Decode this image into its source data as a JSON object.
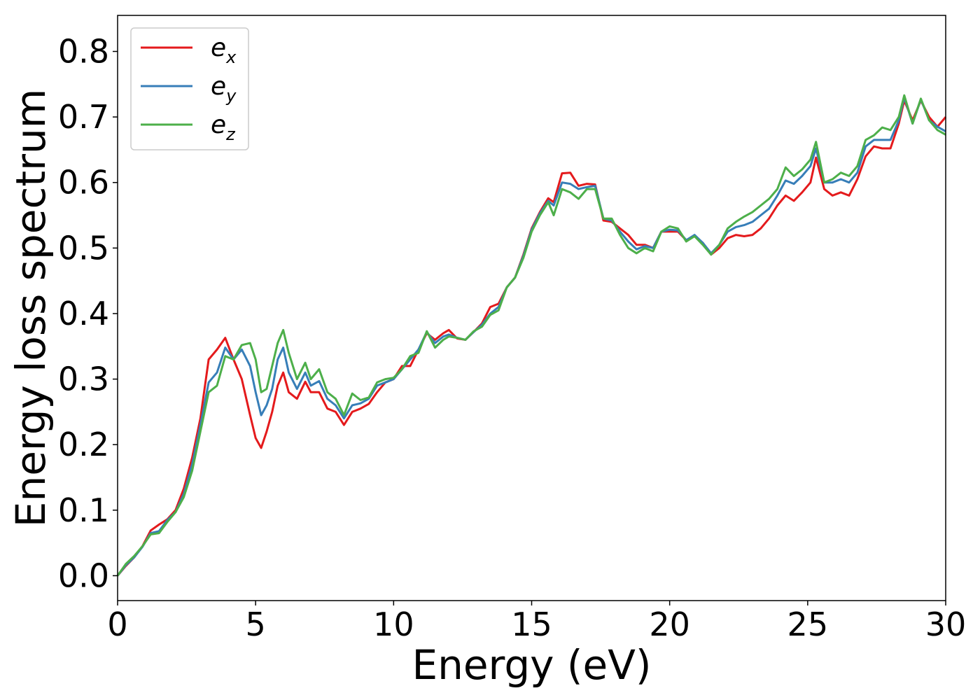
{
  "chart_data": {
    "type": "line",
    "title": "",
    "xlabel": "Energy (eV)",
    "ylabel": "Energy loss spectrum",
    "xlim": [
      0,
      30
    ],
    "ylim": [
      -0.038,
      0.855
    ],
    "xticks": [
      0,
      5,
      10,
      15,
      20,
      25,
      30
    ],
    "xtick_labels": [
      "0",
      "5",
      "10",
      "15",
      "20",
      "25",
      "30"
    ],
    "yticks": [
      0.0,
      0.1,
      0.2,
      0.3,
      0.4,
      0.5,
      0.6,
      0.7,
      0.8
    ],
    "ytick_labels": [
      "0.0",
      "0.1",
      "0.2",
      "0.3",
      "0.4",
      "0.5",
      "0.6",
      "0.7",
      "0.8"
    ],
    "grid": false,
    "legend_position": "top-left",
    "series": [
      {
        "name": "e_x",
        "legend_base": "e",
        "legend_sub": "x",
        "color": "#e41a1c",
        "x": [
          0,
          0.3,
          0.6,
          0.9,
          1.2,
          1.5,
          1.8,
          2.1,
          2.4,
          2.7,
          3.0,
          3.3,
          3.6,
          3.9,
          4.2,
          4.5,
          4.8,
          5.0,
          5.2,
          5.4,
          5.6,
          5.8,
          6.0,
          6.2,
          6.5,
          6.8,
          7.0,
          7.3,
          7.6,
          7.9,
          8.2,
          8.5,
          8.8,
          9.1,
          9.4,
          9.7,
          10.0,
          10.3,
          10.6,
          10.9,
          11.2,
          11.5,
          11.8,
          12.0,
          12.3,
          12.6,
          12.9,
          13.2,
          13.5,
          13.8,
          14.1,
          14.4,
          14.7,
          15.0,
          15.3,
          15.6,
          15.8,
          16.1,
          16.4,
          16.7,
          17.0,
          17.3,
          17.6,
          17.9,
          18.2,
          18.5,
          18.8,
          19.1,
          19.4,
          19.7,
          20.0,
          20.3,
          20.6,
          20.9,
          21.2,
          21.5,
          21.8,
          22.1,
          22.4,
          22.7,
          23.0,
          23.3,
          23.6,
          23.9,
          24.2,
          24.5,
          24.8,
          25.1,
          25.3,
          25.6,
          25.9,
          26.2,
          26.5,
          26.8,
          27.1,
          27.4,
          27.7,
          28.0,
          28.3,
          28.5,
          28.8,
          29.1,
          29.4,
          29.7,
          30.0
        ],
        "y": [
          0.0,
          0.015,
          0.028,
          0.045,
          0.069,
          0.078,
          0.086,
          0.1,
          0.133,
          0.18,
          0.24,
          0.33,
          0.345,
          0.363,
          0.33,
          0.3,
          0.245,
          0.21,
          0.195,
          0.22,
          0.25,
          0.29,
          0.31,
          0.28,
          0.27,
          0.296,
          0.28,
          0.28,
          0.255,
          0.25,
          0.23,
          0.25,
          0.255,
          0.262,
          0.28,
          0.295,
          0.3,
          0.32,
          0.32,
          0.345,
          0.37,
          0.36,
          0.37,
          0.375,
          0.362,
          0.36,
          0.372,
          0.385,
          0.41,
          0.415,
          0.44,
          0.455,
          0.49,
          0.53,
          0.555,
          0.576,
          0.57,
          0.614,
          0.615,
          0.595,
          0.598,
          0.597,
          0.542,
          0.54,
          0.53,
          0.52,
          0.505,
          0.505,
          0.5,
          0.525,
          0.525,
          0.525,
          0.512,
          0.518,
          0.508,
          0.49,
          0.5,
          0.515,
          0.52,
          0.518,
          0.52,
          0.53,
          0.545,
          0.565,
          0.58,
          0.572,
          0.585,
          0.6,
          0.638,
          0.59,
          0.58,
          0.585,
          0.58,
          0.605,
          0.64,
          0.655,
          0.652,
          0.652,
          0.69,
          0.725,
          0.695,
          0.725,
          0.7,
          0.685,
          0.7
        ]
      },
      {
        "name": "e_y",
        "legend_base": "e",
        "legend_sub": "y",
        "color": "#377eb8",
        "x": [
          0,
          0.3,
          0.6,
          0.9,
          1.2,
          1.5,
          1.8,
          2.1,
          2.4,
          2.7,
          3.0,
          3.3,
          3.6,
          3.9,
          4.2,
          4.5,
          4.8,
          5.0,
          5.2,
          5.4,
          5.6,
          5.8,
          6.0,
          6.2,
          6.5,
          6.8,
          7.0,
          7.3,
          7.6,
          7.9,
          8.2,
          8.5,
          8.8,
          9.1,
          9.4,
          9.7,
          10.0,
          10.3,
          10.6,
          10.9,
          11.2,
          11.5,
          11.8,
          12.0,
          12.3,
          12.6,
          12.9,
          13.2,
          13.5,
          13.8,
          14.1,
          14.4,
          14.7,
          15.0,
          15.3,
          15.6,
          15.8,
          16.1,
          16.4,
          16.7,
          17.0,
          17.3,
          17.6,
          17.9,
          18.2,
          18.5,
          18.8,
          19.1,
          19.4,
          19.7,
          20.0,
          20.3,
          20.6,
          20.9,
          21.2,
          21.5,
          21.8,
          22.1,
          22.4,
          22.7,
          23.0,
          23.3,
          23.6,
          23.9,
          24.2,
          24.5,
          24.8,
          25.1,
          25.3,
          25.6,
          25.9,
          26.2,
          26.5,
          26.8,
          27.1,
          27.4,
          27.7,
          28.0,
          28.3,
          28.5,
          28.8,
          29.1,
          29.4,
          29.7,
          30.0
        ],
        "y": [
          0.0,
          0.016,
          0.028,
          0.044,
          0.065,
          0.068,
          0.085,
          0.097,
          0.125,
          0.17,
          0.23,
          0.295,
          0.31,
          0.348,
          0.33,
          0.345,
          0.32,
          0.28,
          0.245,
          0.26,
          0.285,
          0.33,
          0.348,
          0.31,
          0.285,
          0.31,
          0.29,
          0.297,
          0.27,
          0.26,
          0.24,
          0.26,
          0.263,
          0.27,
          0.29,
          0.295,
          0.3,
          0.315,
          0.33,
          0.345,
          0.372,
          0.355,
          0.365,
          0.368,
          0.363,
          0.36,
          0.372,
          0.383,
          0.4,
          0.41,
          0.44,
          0.455,
          0.488,
          0.528,
          0.553,
          0.572,
          0.565,
          0.6,
          0.598,
          0.59,
          0.593,
          0.595,
          0.545,
          0.542,
          0.525,
          0.51,
          0.498,
          0.503,
          0.5,
          0.525,
          0.528,
          0.527,
          0.512,
          0.52,
          0.508,
          0.492,
          0.505,
          0.525,
          0.532,
          0.535,
          0.54,
          0.55,
          0.56,
          0.58,
          0.603,
          0.598,
          0.61,
          0.625,
          0.652,
          0.6,
          0.6,
          0.605,
          0.6,
          0.615,
          0.655,
          0.665,
          0.665,
          0.665,
          0.695,
          0.73,
          0.69,
          0.727,
          0.695,
          0.685,
          0.678
        ]
      },
      {
        "name": "e_z",
        "legend_base": "e",
        "legend_sub": "z",
        "color": "#4daf4a",
        "x": [
          0,
          0.3,
          0.6,
          0.9,
          1.2,
          1.5,
          1.8,
          2.1,
          2.4,
          2.7,
          3.0,
          3.3,
          3.6,
          3.9,
          4.2,
          4.5,
          4.8,
          5.0,
          5.2,
          5.4,
          5.6,
          5.8,
          6.0,
          6.2,
          6.5,
          6.8,
          7.0,
          7.3,
          7.6,
          7.9,
          8.2,
          8.5,
          8.8,
          9.1,
          9.4,
          9.7,
          10.0,
          10.3,
          10.6,
          10.9,
          11.2,
          11.5,
          11.8,
          12.0,
          12.3,
          12.6,
          12.9,
          13.2,
          13.5,
          13.8,
          14.1,
          14.4,
          14.7,
          15.0,
          15.3,
          15.6,
          15.8,
          16.1,
          16.4,
          16.7,
          17.0,
          17.3,
          17.6,
          17.9,
          18.2,
          18.5,
          18.8,
          19.1,
          19.4,
          19.7,
          20.0,
          20.3,
          20.6,
          20.9,
          21.2,
          21.5,
          21.8,
          22.1,
          22.4,
          22.7,
          23.0,
          23.3,
          23.6,
          23.9,
          24.2,
          24.5,
          24.8,
          25.1,
          25.3,
          25.6,
          25.9,
          26.2,
          26.5,
          26.8,
          27.1,
          27.4,
          27.7,
          28.0,
          28.3,
          28.5,
          28.8,
          29.1,
          29.4,
          29.7,
          30.0
        ],
        "y": [
          0.0,
          0.018,
          0.03,
          0.045,
          0.063,
          0.065,
          0.082,
          0.097,
          0.12,
          0.16,
          0.22,
          0.28,
          0.29,
          0.335,
          0.33,
          0.352,
          0.355,
          0.33,
          0.28,
          0.285,
          0.32,
          0.355,
          0.375,
          0.34,
          0.3,
          0.325,
          0.3,
          0.315,
          0.28,
          0.27,
          0.245,
          0.278,
          0.268,
          0.272,
          0.295,
          0.3,
          0.302,
          0.315,
          0.335,
          0.34,
          0.373,
          0.348,
          0.36,
          0.365,
          0.363,
          0.36,
          0.373,
          0.38,
          0.398,
          0.405,
          0.44,
          0.455,
          0.485,
          0.525,
          0.55,
          0.57,
          0.55,
          0.59,
          0.585,
          0.575,
          0.59,
          0.59,
          0.545,
          0.545,
          0.52,
          0.5,
          0.492,
          0.5,
          0.495,
          0.525,
          0.533,
          0.53,
          0.51,
          0.518,
          0.505,
          0.49,
          0.505,
          0.53,
          0.54,
          0.548,
          0.555,
          0.565,
          0.575,
          0.59,
          0.623,
          0.61,
          0.62,
          0.635,
          0.662,
          0.6,
          0.605,
          0.615,
          0.61,
          0.625,
          0.665,
          0.672,
          0.684,
          0.68,
          0.7,
          0.733,
          0.69,
          0.728,
          0.695,
          0.68,
          0.673
        ]
      }
    ]
  }
}
